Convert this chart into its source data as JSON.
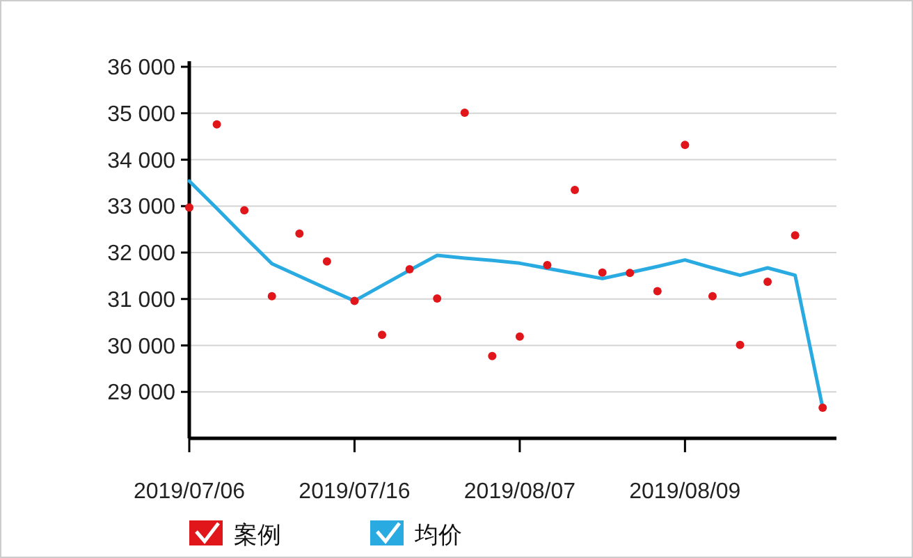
{
  "chart_data": {
    "type": "line",
    "categories": [
      "2019/07/06",
      null,
      null,
      null,
      null,
      null,
      "2019/07/16",
      null,
      null,
      null,
      null,
      null,
      "2019/08/07",
      null,
      null,
      null,
      null,
      null,
      "2019/08/09",
      null,
      null,
      null,
      null,
      null
    ],
    "ylim": [
      28000,
      36000
    ],
    "yticks": [
      {
        "value": 29000,
        "label": "29 000"
      },
      {
        "value": 30000,
        "label": "30 000"
      },
      {
        "value": 31000,
        "label": "31 000"
      },
      {
        "value": 32000,
        "label": "32 000"
      },
      {
        "value": 33000,
        "label": "33 000"
      },
      {
        "value": 34000,
        "label": "34 000"
      },
      {
        "value": 35000,
        "label": "35 000"
      },
      {
        "value": 36000,
        "label": "36 000"
      }
    ],
    "grid": "y",
    "legend": "bottom left",
    "series": [
      {
        "name": "案例",
        "type": "scatter",
        "marker": "circle",
        "color": "#e0161b",
        "values": [
          32970,
          34760,
          32910,
          31060,
          32410,
          31810,
          30960,
          30230,
          31640,
          31010,
          35010,
          29770,
          30190,
          31730,
          33350,
          31570,
          31560,
          31170,
          34320,
          31060,
          30010,
          31370,
          32370,
          28660
        ]
      },
      {
        "name": "均价",
        "marker": "none",
        "color": "#29abe2",
        "values": [
          33540,
          32950,
          32350,
          31760,
          31490,
          31220,
          30960,
          31290,
          31620,
          31940,
          31880,
          31830,
          31770,
          31660,
          31550,
          31440,
          31570,
          31700,
          31840,
          31670,
          31510,
          31670,
          31510,
          28660
        ]
      }
    ]
  }
}
